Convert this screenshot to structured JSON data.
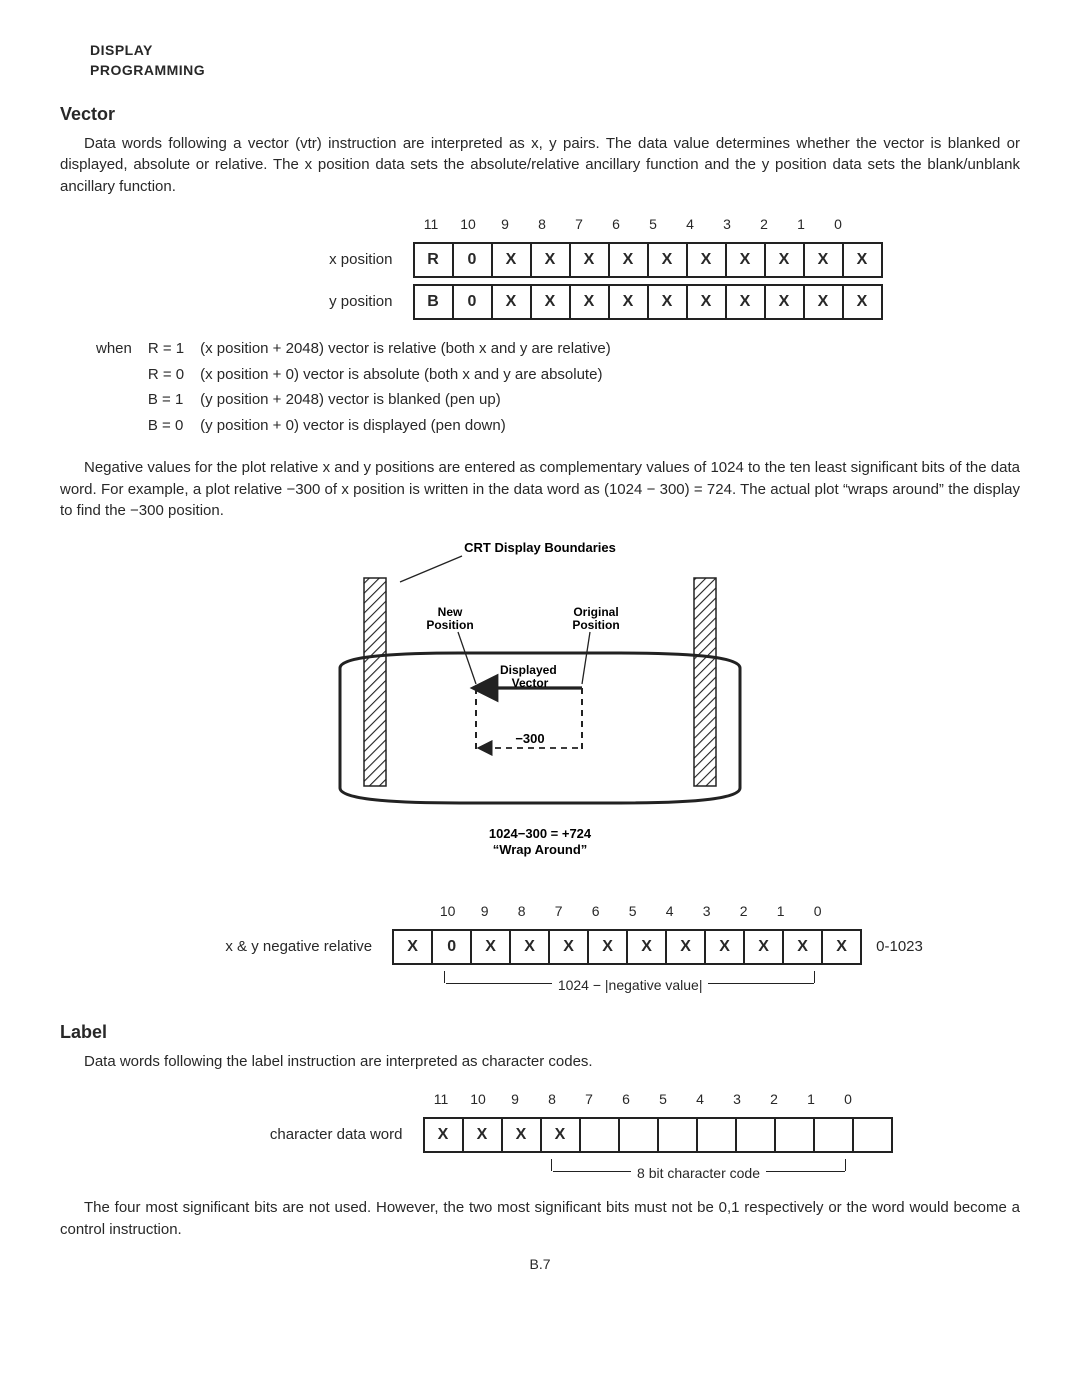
{
  "header": {
    "line1": "DISPLAY",
    "line2": "PROGRAMMING"
  },
  "vector": {
    "title": "Vector",
    "para1": "Data words following a vector (vtr) instruction are interpreted as x, y pairs. The data value determines whether the vector is blanked or displayed, absolute or relative. The x position data sets the absolute/relative ancillary function and the y position data sets the blank/unblank ancillary function.",
    "bit_headers": [
      "11",
      "10",
      "9",
      "8",
      "7",
      "6",
      "5",
      "4",
      "3",
      "2",
      "1",
      "0"
    ],
    "xpos_label": "x position",
    "xpos_cells": [
      "R",
      "0",
      "X",
      "X",
      "X",
      "X",
      "X",
      "X",
      "X",
      "X",
      "X",
      "X"
    ],
    "ypos_label": "y position",
    "ypos_cells": [
      "B",
      "0",
      "X",
      "X",
      "X",
      "X",
      "X",
      "X",
      "X",
      "X",
      "X",
      "X"
    ],
    "cond_when": "when",
    "cond_rows": [
      {
        "k": "R = 1",
        "v": "(x position + 2048) vector is relative (both x and y are relative)"
      },
      {
        "k": "R = 0",
        "v": "(x position + 0) vector is absolute (both x and y are absolute)"
      },
      {
        "k": "B = 1",
        "v": "(y position + 2048) vector is blanked (pen up)"
      },
      {
        "k": "B = 0",
        "v": "(y position + 0) vector is displayed (pen down)"
      }
    ],
    "para2": "Negative values for the plot relative x and y positions are entered as complementary values of 1024 to the ten least significant bits of the data word. For example, a plot relative −300 of x position is written in the data word as (1024 − 300) = 724. The actual plot “wraps around” the display to find the −300 position.",
    "diagram": {
      "title": "CRT Display Boundaries",
      "new_pos": "New\nPosition",
      "orig_pos": "Original\nPosition",
      "disp_vec": "Displayed\nVector",
      "dim_label": "−300",
      "caption1": "1024−300 = +724",
      "caption2": "“Wrap Around”"
    },
    "neg_label": "x & y negative relative",
    "neg_headers": [
      "",
      "10",
      "9",
      "8",
      "7",
      "6",
      "5",
      "4",
      "3",
      "2",
      "1",
      "0"
    ],
    "neg_cells": [
      "X",
      "0",
      "X",
      "X",
      "X",
      "X",
      "X",
      "X",
      "X",
      "X",
      "X",
      "X"
    ],
    "neg_range": "0-1023",
    "neg_bracket": "1024 − |negative value|"
  },
  "label": {
    "title": "Label",
    "para1": "Data words following the label instruction are interpreted as character codes.",
    "cdw_label": "character data word",
    "cdw_headers": [
      "11",
      "10",
      "9",
      "8",
      "7",
      "6",
      "5",
      "4",
      "3",
      "2",
      "1",
      "0"
    ],
    "cdw_cells": [
      "X",
      "X",
      "X",
      "X",
      "",
      "",
      "",
      "",
      "",
      "",
      "",
      ""
    ],
    "cdw_bracket": "8 bit character code",
    "para2": "The four most significant bits are not used. However, the two most significant bits must not be 0,1 respectively or the word would become a control instruction."
  },
  "page_num": "B.7"
}
